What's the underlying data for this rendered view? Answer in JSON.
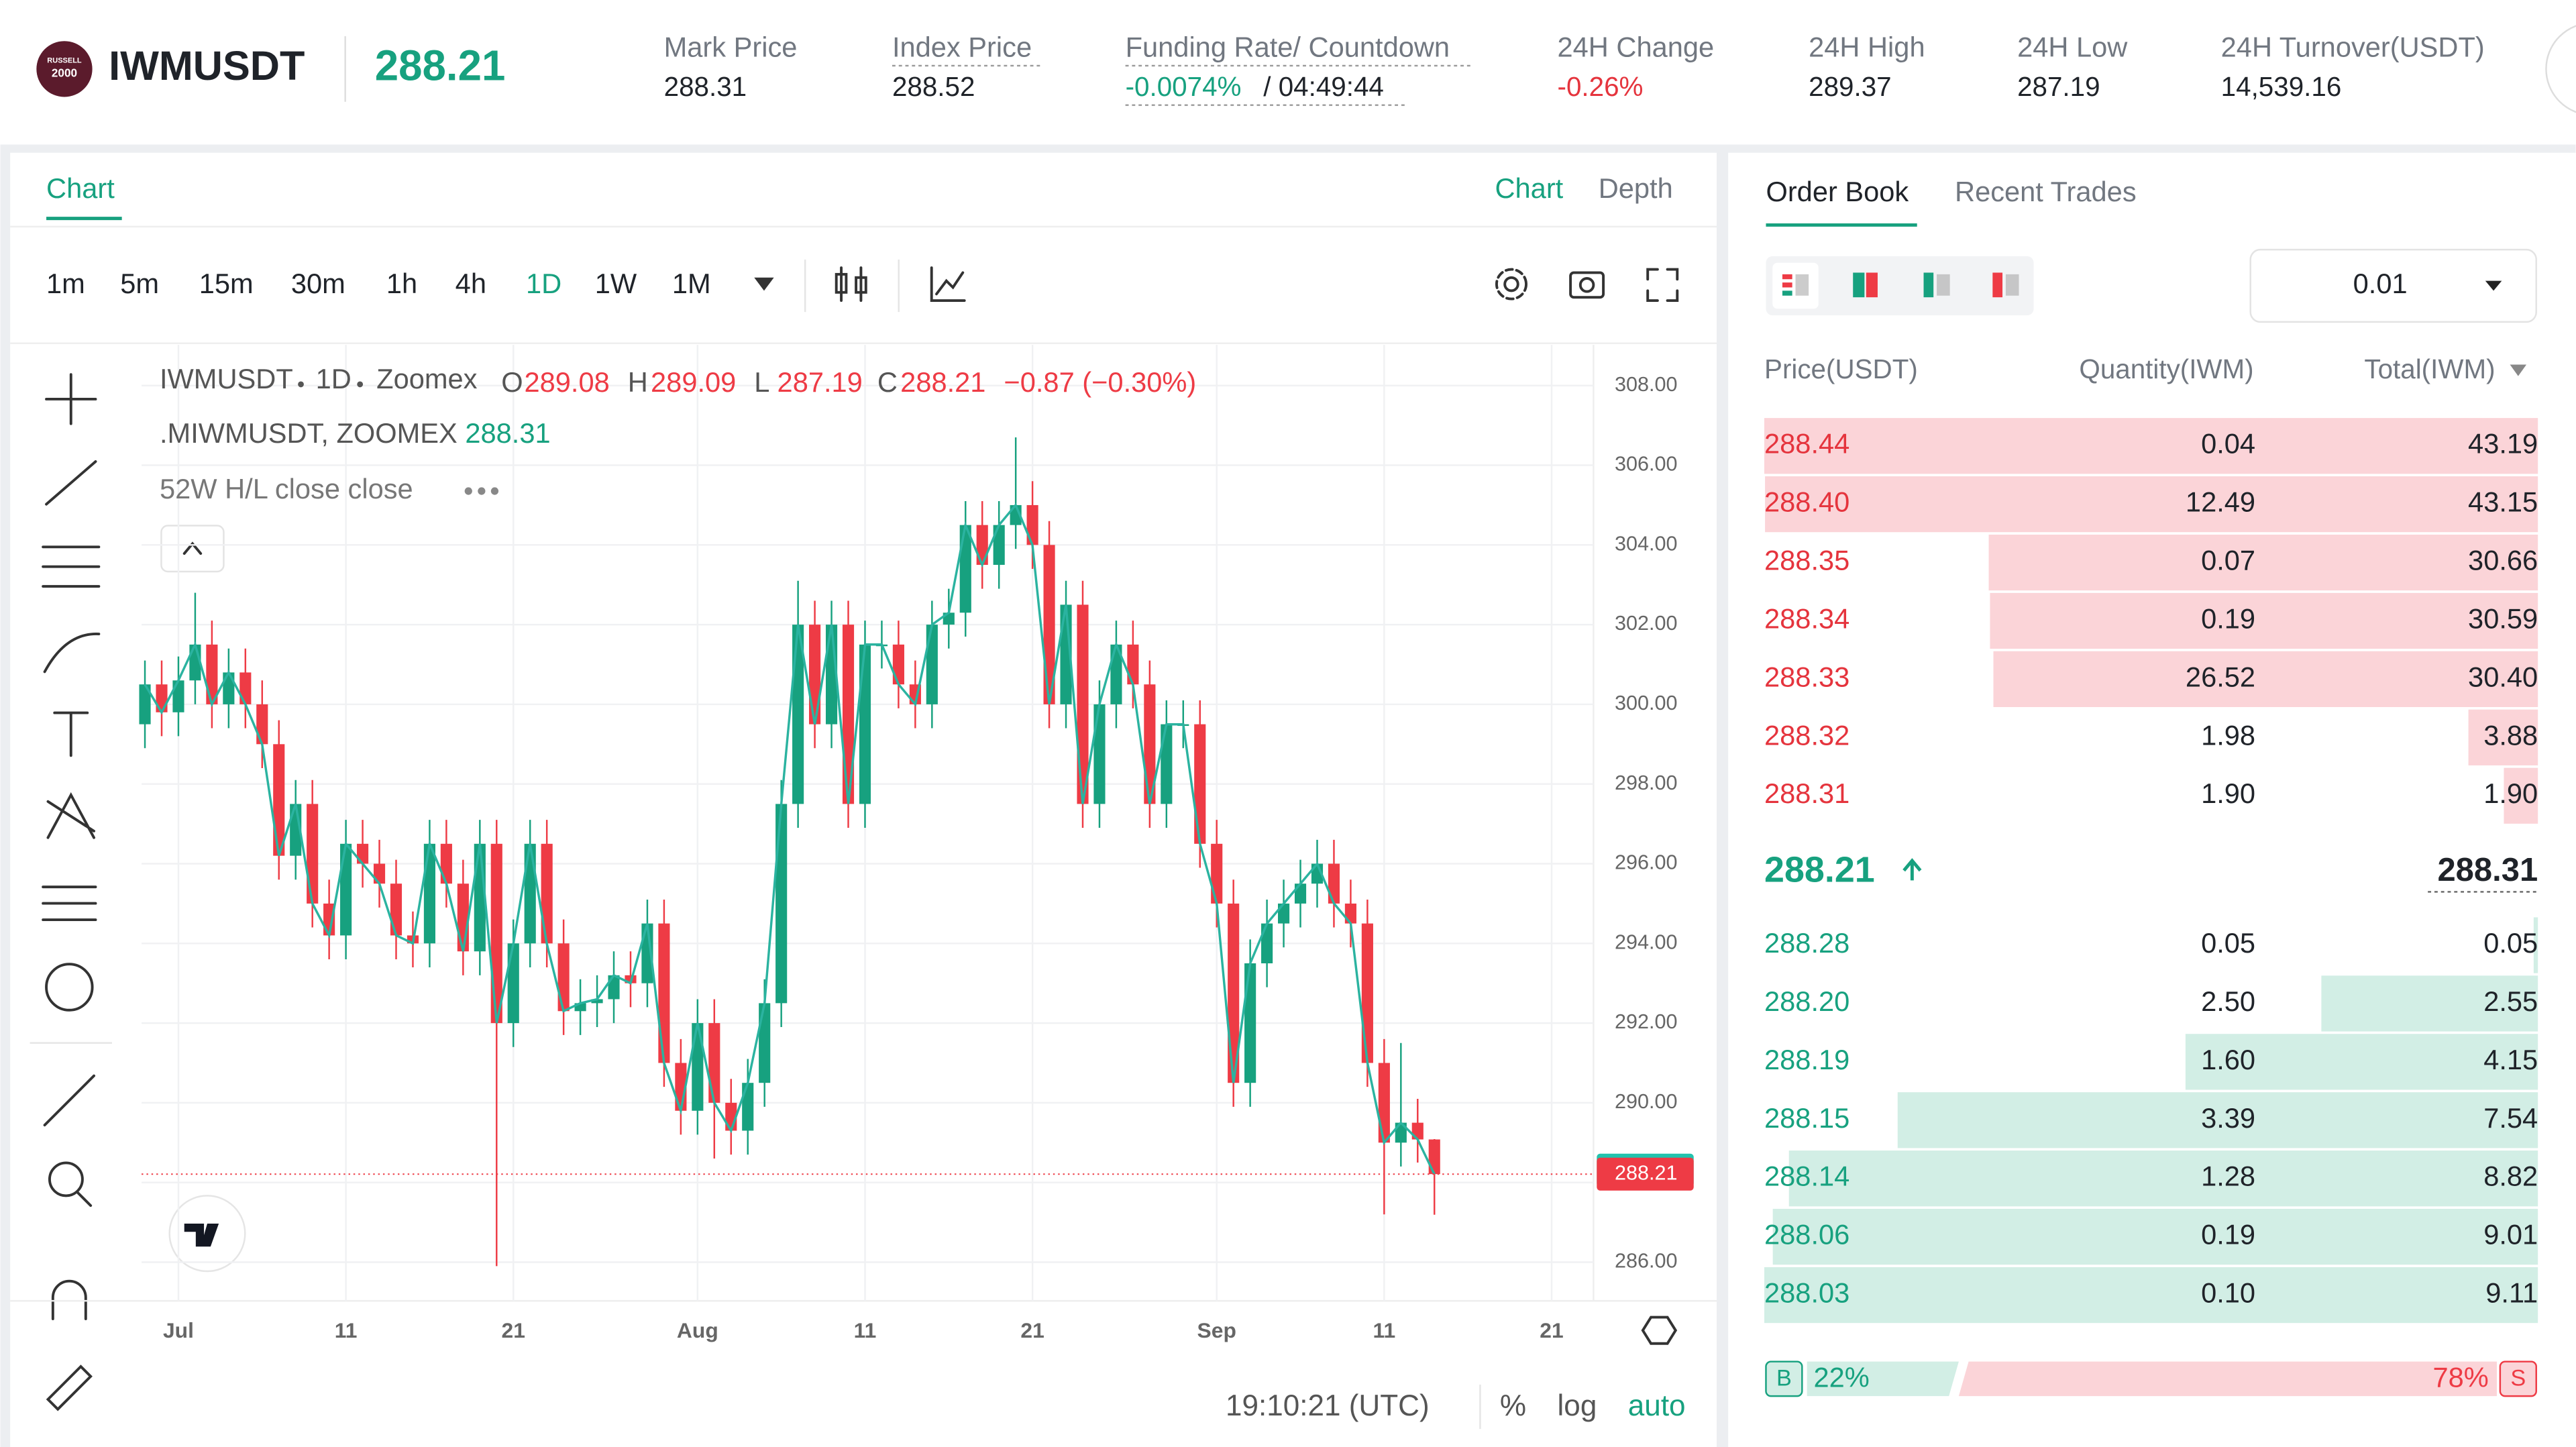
{
  "header": {
    "logo": [
      "RUSSELL",
      "2000"
    ],
    "symbol": "IWMUSDT",
    "last_price": "288.21",
    "stats": [
      {
        "label": "Mark Price",
        "value": "288.31"
      },
      {
        "label": "Index Price",
        "value": "288.52"
      },
      {
        "label": "Funding Rate/ Countdown",
        "value": "-0.0074%",
        "extra": "/ 04:49:44"
      },
      {
        "label": "24H Change",
        "value": "-0.26%"
      },
      {
        "label": "24H High",
        "value": "289.37"
      },
      {
        "label": "24H Low",
        "value": "287.19"
      },
      {
        "label": "24H Turnover(USDT)",
        "value": "14,539.16"
      }
    ]
  },
  "chart_panel": {
    "tab": "Chart",
    "views": [
      "Chart",
      "Depth"
    ],
    "intervals": [
      "1m",
      "5m",
      "15m",
      "30m",
      "1h",
      "4h",
      "1D",
      "1W",
      "1M"
    ],
    "active_interval": 6,
    "legend": {
      "symbol": "IWMUSDT",
      "interval": "1D",
      "exchange": "Zoomex",
      "o": "O",
      "h": "H",
      "l": "L",
      "c": "C",
      "change": "−0.87 (−0.30%)",
      "index_name": ".MIWMUSDT, ZOOMEX",
      "index_value": "288.31",
      "indicator": "52W H/L close close"
    },
    "time": "19:10:21 (UTC)",
    "options": [
      "%",
      "log",
      "auto"
    ]
  },
  "chart_data": {
    "type": "candlestick",
    "up_color": "#17a17f",
    "down_color": "#ee3b45",
    "line_color": "#2bb3a0",
    "x": [
      0,
      1,
      2,
      3,
      4,
      5,
      6,
      7,
      8,
      9,
      10,
      11,
      12,
      13,
      14,
      15,
      16,
      17,
      18,
      19,
      20,
      21,
      22,
      23,
      24,
      25,
      26,
      27,
      28,
      29,
      30,
      31,
      32,
      33,
      34,
      35,
      36,
      37,
      38,
      39,
      40,
      41,
      42,
      43,
      44,
      45,
      46,
      47,
      48,
      49,
      50,
      51,
      52,
      53,
      54,
      55,
      56,
      57,
      58,
      59,
      60,
      61,
      62,
      63,
      64,
      65,
      66,
      67,
      68,
      69,
      70,
      71,
      72,
      73,
      74,
      75,
      76,
      77
    ],
    "open": [
      299.5,
      300.5,
      299.8,
      300.6,
      301.5,
      300.0,
      300.8,
      300.0,
      299.0,
      296.2,
      297.5,
      295.0,
      294.2,
      296.5,
      296.0,
      295.5,
      294.2,
      294.0,
      296.5,
      295.5,
      293.8,
      296.5,
      292.0,
      294.0,
      296.5,
      294.0,
      292.3,
      292.5,
      292.6,
      293.2,
      293.0,
      294.5,
      291.0,
      289.8,
      292.0,
      290.0,
      289.3,
      290.5,
      292.5,
      297.5,
      302.0,
      299.5,
      302.0,
      297.5,
      301.5,
      301.5,
      300.5,
      300.0,
      302.0,
      302.3,
      304.5,
      303.5,
      304.5,
      305.0,
      304.0,
      300.0,
      302.5,
      297.5,
      300.0,
      301.5,
      300.5,
      297.5,
      299.5,
      299.5,
      296.5,
      295.0,
      290.5,
      293.5,
      294.5,
      295.0,
      295.5,
      296.0,
      295.0,
      294.5,
      291.0,
      289.0,
      289.5,
      289.08
    ],
    "high": [
      301.1,
      301.1,
      301.2,
      302.8,
      302.1,
      301.4,
      301.4,
      300.6,
      299.6,
      298.1,
      298.1,
      295.6,
      297.1,
      297.1,
      296.6,
      296.1,
      294.8,
      297.1,
      297.1,
      296.1,
      297.1,
      297.1,
      294.6,
      297.1,
      297.1,
      294.6,
      293.1,
      293.2,
      293.8,
      293.8,
      295.1,
      295.1,
      291.6,
      292.6,
      292.6,
      290.6,
      291.1,
      293.1,
      298.1,
      303.1,
      302.6,
      302.6,
      302.6,
      302.1,
      302.1,
      302.1,
      301.1,
      302.6,
      302.9,
      305.1,
      305.1,
      305.1,
      306.7,
      305.6,
      304.6,
      303.1,
      303.1,
      300.6,
      302.1,
      302.1,
      301.1,
      300.1,
      300.1,
      300.1,
      297.1,
      295.6,
      294.1,
      295.1,
      295.6,
      296.1,
      296.6,
      296.6,
      295.6,
      295.1,
      291.6,
      291.5,
      290.1,
      289.09
    ],
    "low": [
      298.9,
      299.2,
      299.2,
      300.0,
      299.4,
      299.4,
      299.4,
      298.4,
      295.6,
      295.6,
      294.4,
      293.6,
      293.6,
      295.4,
      294.9,
      293.6,
      293.4,
      293.4,
      294.9,
      293.2,
      293.2,
      285.9,
      291.4,
      293.4,
      293.4,
      291.7,
      291.7,
      291.9,
      292.0,
      292.4,
      292.4,
      290.4,
      289.2,
      289.2,
      288.6,
      288.7,
      288.7,
      289.9,
      291.9,
      296.9,
      298.9,
      298.9,
      296.9,
      296.9,
      300.9,
      299.9,
      299.4,
      299.4,
      301.4,
      301.7,
      302.9,
      302.9,
      303.9,
      303.4,
      299.4,
      299.4,
      296.9,
      296.9,
      299.4,
      299.9,
      296.9,
      296.9,
      298.9,
      295.9,
      294.4,
      289.9,
      289.9,
      292.9,
      293.9,
      294.4,
      294.9,
      294.4,
      293.9,
      290.4,
      287.2,
      288.4,
      288.5,
      287.19
    ],
    "close": [
      300.5,
      299.8,
      300.6,
      301.5,
      300.0,
      300.8,
      300.0,
      299.0,
      296.2,
      297.5,
      295.0,
      294.2,
      296.5,
      296.0,
      295.5,
      294.2,
      294.0,
      296.5,
      295.5,
      293.8,
      296.5,
      292.0,
      294.0,
      296.5,
      294.0,
      292.3,
      292.5,
      292.6,
      293.2,
      293.0,
      294.5,
      291.0,
      289.8,
      292.0,
      290.0,
      289.3,
      290.5,
      292.5,
      297.5,
      302.0,
      299.5,
      302.0,
      297.5,
      301.5,
      301.5,
      300.5,
      300.0,
      302.0,
      302.3,
      304.5,
      303.5,
      304.5,
      305.0,
      304.0,
      300.0,
      302.5,
      297.5,
      300.0,
      301.5,
      300.5,
      297.5,
      299.5,
      299.5,
      296.5,
      295.0,
      290.5,
      293.5,
      294.5,
      295.0,
      295.5,
      296.0,
      295.0,
      294.5,
      291.0,
      289.0,
      289.5,
      289.08,
      288.21
    ],
    "xlim": [
      -0.2,
      86.5
    ],
    "xticks": [
      {
        "value": 2,
        "label": "Jul"
      },
      {
        "value": 12,
        "label": "11"
      },
      {
        "value": 22,
        "label": "21"
      },
      {
        "value": 33,
        "label": "Aug"
      },
      {
        "value": 43,
        "label": "11"
      },
      {
        "value": 53,
        "label": "21"
      },
      {
        "value": 64,
        "label": "Sep"
      },
      {
        "value": 74,
        "label": "11"
      },
      {
        "value": 84,
        "label": "21"
      }
    ],
    "ylim": [
      285.03,
      309.02
    ],
    "yticks": [
      {
        "value": 286,
        "label": "286.00"
      },
      {
        "value": 288,
        "label": "288.00"
      },
      {
        "value": 290,
        "label": "290.00"
      },
      {
        "value": 292,
        "label": "292.00"
      },
      {
        "value": 294,
        "label": "294.00"
      },
      {
        "value": 296,
        "label": "296.00"
      },
      {
        "value": 298,
        "label": "298.00"
      },
      {
        "value": 300,
        "label": "300.00"
      },
      {
        "value": 302,
        "label": "302.00"
      },
      {
        "value": 304,
        "label": "304.00"
      },
      {
        "value": 306,
        "label": "306.00"
      },
      {
        "value": 308,
        "label": "308.00"
      }
    ],
    "grid": true,
    "mark_price": 288.31,
    "last_price": 288.21
  },
  "order_book": {
    "tabs": [
      "Order Book",
      "Recent Trades"
    ],
    "precision": "0.01",
    "columns": [
      "Price(USDT)",
      "Quantity(IWM)",
      "Total(IWM)"
    ],
    "asks": [
      {
        "price": "288.44",
        "qty": "0.04",
        "total": "43.19"
      },
      {
        "price": "288.40",
        "qty": "12.49",
        "total": "43.15"
      },
      {
        "price": "288.35",
        "qty": "0.07",
        "total": "30.66"
      },
      {
        "price": "288.34",
        "qty": "0.19",
        "total": "30.59"
      },
      {
        "price": "288.33",
        "qty": "26.52",
        "total": "30.40"
      },
      {
        "price": "288.32",
        "qty": "1.98",
        "total": "3.88"
      },
      {
        "price": "288.31",
        "qty": "1.90",
        "total": "1.90"
      }
    ],
    "last": "288.21",
    "mark": "288.31",
    "bids": [
      {
        "price": "288.28",
        "qty": "0.05",
        "total": "0.05"
      },
      {
        "price": "288.20",
        "qty": "2.50",
        "total": "2.55"
      },
      {
        "price": "288.19",
        "qty": "1.60",
        "total": "4.15"
      },
      {
        "price": "288.15",
        "qty": "3.39",
        "total": "7.54"
      },
      {
        "price": "288.14",
        "qty": "1.28",
        "total": "8.82"
      },
      {
        "price": "288.06",
        "qty": "0.19",
        "total": "9.01"
      },
      {
        "price": "288.03",
        "qty": "0.10",
        "total": "9.11"
      }
    ],
    "buy_tag": "B",
    "buy": "22%",
    "sell": "78%",
    "sell_tag": "S"
  }
}
